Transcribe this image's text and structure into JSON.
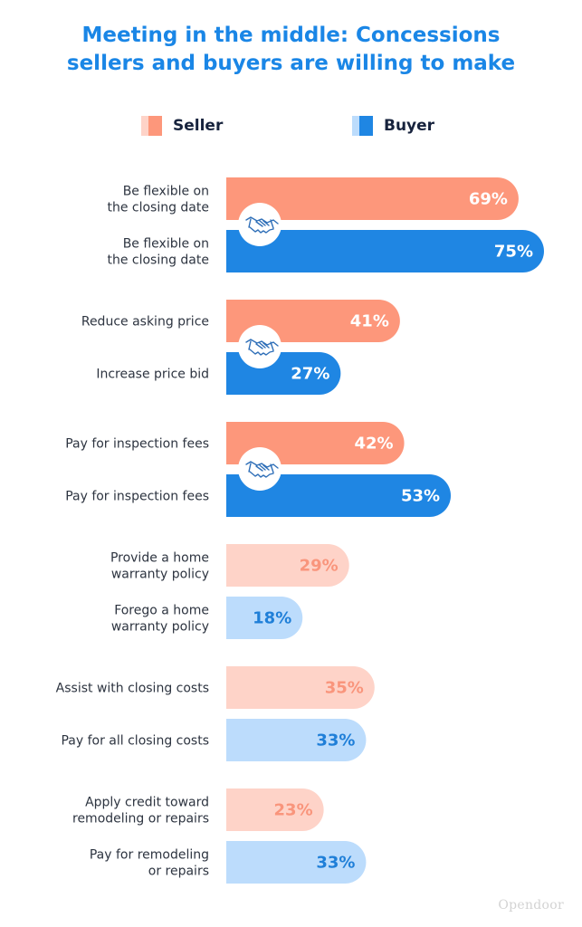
{
  "title_line1": "Meeting in the middle: Concessions",
  "title_line2": "sellers and buyers are willing to make",
  "legend": {
    "seller": "Seller",
    "buyer": "Buyer"
  },
  "brand": "Opendoor",
  "colors": {
    "seller": "#fd977b",
    "buyer": "#1f86e3",
    "seller_light": "#fed3c8",
    "buyer_light": "#bcdcfc",
    "seller_light_text": "#f9957c",
    "buyer_light_text": "#1f7fd8",
    "title": "#1a86e6"
  },
  "chart_data": {
    "type": "bar",
    "orientation": "horizontal",
    "title": "Meeting in the middle: Concessions sellers and buyers are willing to make",
    "unit": "%",
    "xlim": [
      0,
      100
    ],
    "series_names": [
      "Seller",
      "Buyer"
    ],
    "groups": [
      {
        "seller_label": [
          "Be flexible on",
          "the closing date"
        ],
        "seller_value": 69,
        "seller_text": "69%",
        "buyer_label": [
          "Be flexible on",
          "the closing date"
        ],
        "buyer_value": 75,
        "buyer_text": "75%",
        "matched": true
      },
      {
        "seller_label": [
          "Reduce asking price"
        ],
        "seller_value": 41,
        "seller_text": "41%",
        "buyer_label": [
          "Increase price bid"
        ],
        "buyer_value": 27,
        "buyer_text": "27%",
        "matched": true
      },
      {
        "seller_label": [
          "Pay for inspection fees"
        ],
        "seller_value": 42,
        "seller_text": "42%",
        "buyer_label": [
          "Pay for inspection fees"
        ],
        "buyer_value": 53,
        "buyer_text": "53%",
        "matched": true
      },
      {
        "seller_label": [
          "Provide a home",
          "warranty policy"
        ],
        "seller_value": 29,
        "seller_text": "29%",
        "buyer_label": [
          "Forego a home",
          "warranty policy"
        ],
        "buyer_value": 18,
        "buyer_text": "18%",
        "matched": false
      },
      {
        "seller_label": [
          "Assist with closing costs"
        ],
        "seller_value": 35,
        "seller_text": "35%",
        "buyer_label": [
          "Pay for all closing costs"
        ],
        "buyer_value": 33,
        "buyer_text": "33%",
        "matched": false
      },
      {
        "seller_label": [
          "Apply credit toward",
          "remodeling or repairs"
        ],
        "seller_value": 23,
        "seller_text": "23%",
        "buyer_label": [
          "Pay for remodeling",
          "or repairs"
        ],
        "buyer_value": 33,
        "buyer_text": "33%",
        "matched": false
      }
    ]
  }
}
